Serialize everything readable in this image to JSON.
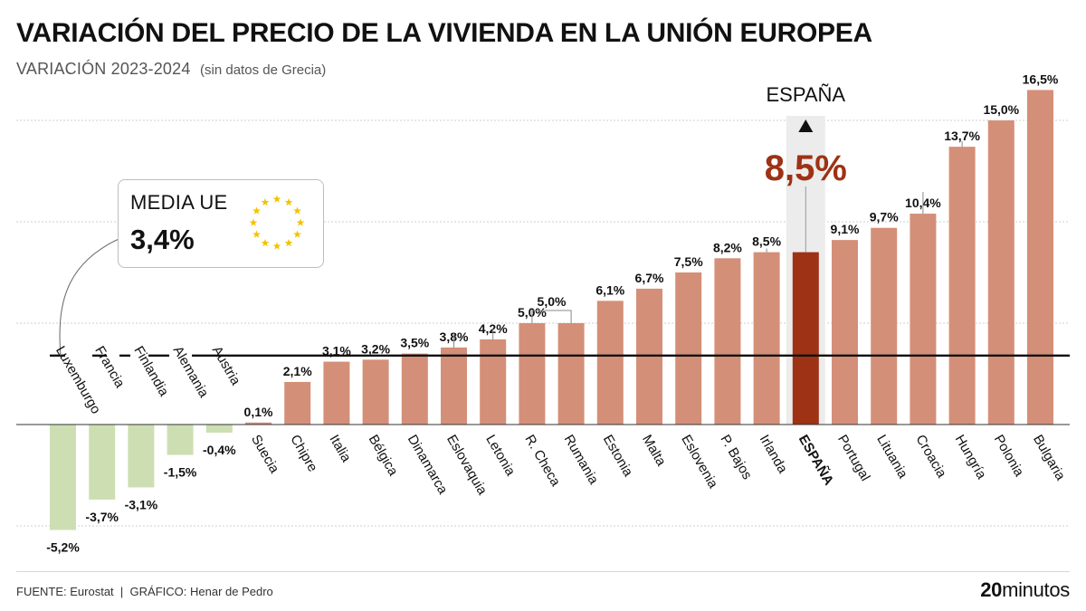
{
  "title": "VARIACIÓN DEL PRECIO DE LA VIVIENDA EN LA UNIÓN EUROPEA",
  "subtitle": "VARIACIÓN 2023-2024",
  "subtitle_note": "(sin datos de Grecia)",
  "average": {
    "label": "MEDIA UE",
    "value_text": "3,4%",
    "value": 3.4
  },
  "highlight": {
    "country": "ESPAÑA",
    "value_text": "8,5%"
  },
  "footer": {
    "source_label": "FUENTE:",
    "source": "Eurostat",
    "separator": "|",
    "credit_label": "GRÁFICO:",
    "credit": "Henar de Pedro"
  },
  "logo": {
    "part1": "20",
    "part2": "minutos"
  },
  "colors": {
    "positive": "#d48f78",
    "negative": "#cddfb2",
    "highlight": "#9e3214",
    "highlight_text": "#9e3214",
    "average_line": "#111111"
  },
  "chart_data": {
    "type": "bar",
    "ylim": [
      -5.2,
      16.5
    ],
    "grid": true,
    "categories": [
      "Luxemburgo",
      "Francia",
      "Finlandia",
      "Alemania",
      "Austria",
      "Suecia",
      "Chipre",
      "Italia",
      "Bélgica",
      "Dinamarca",
      "Eslovaquia",
      "Letonia",
      "R. Checa",
      "Rumania",
      "Estonia",
      "Malta",
      "Eslovenia",
      "P. Bajos",
      "Irlanda",
      "ESPAÑA",
      "Portugal",
      "Lituania",
      "Croacia",
      "Hungría",
      "Polonia",
      "Bulgaria"
    ],
    "values": [
      -5.2,
      -3.7,
      -3.1,
      -1.5,
      -0.4,
      0.1,
      2.1,
      3.1,
      3.2,
      3.5,
      3.8,
      4.2,
      5.0,
      5.0,
      6.1,
      6.7,
      7.5,
      8.2,
      8.5,
      8.5,
      9.1,
      9.7,
      10.4,
      13.7,
      15.0,
      16.5
    ],
    "value_labels": [
      "-5,2%",
      "-3,7%",
      "-3,1%",
      "-1,5%",
      "-0,4%",
      "0,1%",
      "2,1%",
      "3,1%",
      "3,2%",
      "3,5%",
      "3,8%",
      "4,2%",
      "5,0%",
      "",
      "6,1%",
      "6,7%",
      "7,5%",
      "8,2%",
      "8,5%",
      "",
      "9,1%",
      "9,7%",
      "10,4%",
      "13,7%",
      "15,0%",
      "16,5%"
    ],
    "reference_line": 3.4
  }
}
